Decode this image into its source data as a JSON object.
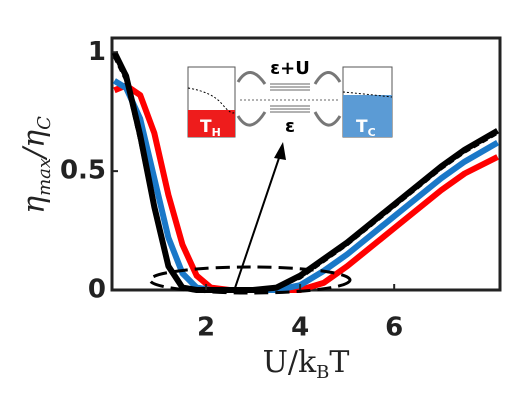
{
  "chart_data": {
    "type": "line",
    "xlabel_parts": [
      "U/k",
      "B",
      "T"
    ],
    "ylabel_parts": [
      "η",
      "max",
      "/η",
      "C"
    ],
    "x": [
      0.05,
      0.3,
      0.6,
      0.9,
      1.2,
      1.5,
      1.8,
      2.1,
      2.5,
      3,
      3.5,
      4,
      4.5,
      5,
      5.5,
      6,
      6.5,
      7,
      7.5,
      8.2
    ],
    "series": [
      {
        "color": "#000000",
        "dashed": false,
        "values": [
          1.0,
          0.9,
          0.65,
          0.35,
          0.1,
          0.01,
          0,
          0,
          0,
          0,
          0.01,
          0.06,
          0.13,
          0.2,
          0.28,
          0.36,
          0.44,
          0.52,
          0.59,
          0.67
        ]
      },
      {
        "color": "#000000",
        "dashed": true,
        "values": [
          0.98,
          0.88,
          0.62,
          0.33,
          0.09,
          0.01,
          0,
          0,
          0,
          0,
          0.01,
          0.05,
          0.12,
          0.19,
          0.27,
          0.35,
          0.43,
          0.51,
          0.58,
          0.66
        ]
      },
      {
        "color": "#1a78c8",
        "dashed": false,
        "values": [
          0.88,
          0.85,
          0.72,
          0.47,
          0.22,
          0.07,
          0.01,
          0,
          0,
          0,
          0,
          0.02,
          0.08,
          0.15,
          0.23,
          0.31,
          0.39,
          0.47,
          0.54,
          0.62
        ]
      },
      {
        "color": "#ff0000",
        "dashed": false,
        "values": [
          0.84,
          0.86,
          0.82,
          0.66,
          0.4,
          0.19,
          0.06,
          0.01,
          0,
          0,
          0,
          0,
          0.03,
          0.1,
          0.18,
          0.26,
          0.34,
          0.42,
          0.49,
          0.56
        ]
      }
    ],
    "xlim": [
      0,
      8.25
    ],
    "ylim": [
      0,
      1.06
    ],
    "xticks": [
      2,
      4,
      6
    ],
    "yticks": [
      0,
      0.5,
      1
    ],
    "inset": {
      "upper_level": "ε+U",
      "lower_level": "ε",
      "hot": "T",
      "hot_sub": "H",
      "cold": "T",
      "cold_sub": "C"
    }
  }
}
